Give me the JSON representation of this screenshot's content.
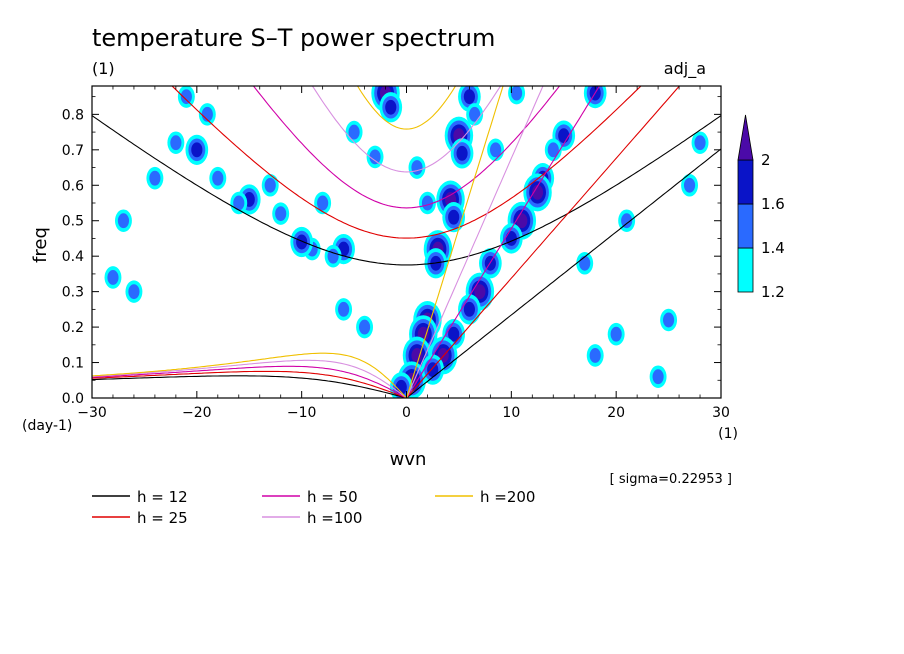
{
  "chart_data": {
    "type": "heatmap",
    "title": "temperature S–T power spectrum",
    "subtitle": "(1)",
    "right_label": "adj_a",
    "xlabel": "wvn",
    "ylabel": "freq",
    "x_unit": "(1)",
    "y_unit": "(day-1)",
    "xlim": [
      -30,
      30
    ],
    "ylim": [
      0,
      0.88
    ],
    "x_ticks": [
      "−30",
      "−20",
      "−10",
      "0",
      "10",
      "20",
      "30"
    ],
    "x_tick_values": [
      -30,
      -20,
      -10,
      0,
      10,
      20,
      30
    ],
    "y_ticks": [
      "0.0",
      "0.1",
      "0.2",
      "0.3",
      "0.4",
      "0.5",
      "0.6",
      "0.7",
      "0.8"
    ],
    "y_tick_values": [
      0,
      0.1,
      0.2,
      0.3,
      0.4,
      0.5,
      0.6,
      0.7,
      0.8
    ],
    "sigma_note": "[ sigma=0.22953 ]",
    "colorbar": {
      "levels": [
        "1.2",
        "1.4",
        "1.6",
        "2"
      ],
      "level_values": [
        1.2,
        1.4,
        1.6,
        2.0
      ],
      "colors": [
        "#00ffff",
        "#2a6aff",
        "#0a14c8",
        "#4b0aa8"
      ]
    },
    "series": [
      {
        "name": "h = 12",
        "h": 12,
        "color": "#000000"
      },
      {
        "name": "h = 25",
        "h": 25,
        "color": "#e00000"
      },
      {
        "name": "h = 50",
        "h": 50,
        "color": "#d000a8"
      },
      {
        "name": "h =100",
        "h": 100,
        "color": "#d890e0"
      },
      {
        "name": "h =200",
        "h": 200,
        "color": "#f0c000"
      }
    ],
    "blobs": [
      {
        "x": -2,
        "y": 0.86,
        "level": 4
      },
      {
        "x": -1.5,
        "y": 0.82,
        "level": 3
      },
      {
        "x": 5,
        "y": 0.74,
        "level": 4
      },
      {
        "x": 5.3,
        "y": 0.69,
        "level": 3
      },
      {
        "x": 4.2,
        "y": 0.56,
        "level": 4
      },
      {
        "x": 4.5,
        "y": 0.51,
        "level": 3
      },
      {
        "x": 3,
        "y": 0.42,
        "level": 4
      },
      {
        "x": 2.8,
        "y": 0.38,
        "level": 3
      },
      {
        "x": 2,
        "y": 0.22,
        "level": 4
      },
      {
        "x": 1.6,
        "y": 0.18,
        "level": 4
      },
      {
        "x": 1,
        "y": 0.12,
        "level": 4
      },
      {
        "x": 0.5,
        "y": 0.05,
        "level": 4
      },
      {
        "x": -0.5,
        "y": 0.03,
        "level": 3
      },
      {
        "x": 6,
        "y": 0.85,
        "level": 3
      },
      {
        "x": 6.5,
        "y": 0.8,
        "level": 2
      },
      {
        "x": 11,
        "y": 0.5,
        "level": 4
      },
      {
        "x": 10,
        "y": 0.45,
        "level": 3
      },
      {
        "x": 8,
        "y": 0.38,
        "level": 3
      },
      {
        "x": 7,
        "y": 0.3,
        "level": 4
      },
      {
        "x": 6,
        "y": 0.25,
        "level": 3
      },
      {
        "x": 4.5,
        "y": 0.18,
        "level": 3
      },
      {
        "x": 3.5,
        "y": 0.12,
        "level": 4
      },
      {
        "x": 2.5,
        "y": 0.08,
        "level": 3
      },
      {
        "x": 13,
        "y": 0.62,
        "level": 3
      },
      {
        "x": 12.5,
        "y": 0.58,
        "level": 4
      },
      {
        "x": 15,
        "y": 0.74,
        "level": 3
      },
      {
        "x": 14,
        "y": 0.7,
        "level": 2
      },
      {
        "x": 18,
        "y": 0.86,
        "level": 3
      },
      {
        "x": -6,
        "y": 0.42,
        "level": 3
      },
      {
        "x": -7,
        "y": 0.4,
        "level": 2
      },
      {
        "x": -9,
        "y": 0.42,
        "level": 2
      },
      {
        "x": -10,
        "y": 0.44,
        "level": 3
      },
      {
        "x": -15,
        "y": 0.56,
        "level": 3
      },
      {
        "x": -16,
        "y": 0.55,
        "level": 2
      },
      {
        "x": -18,
        "y": 0.62,
        "level": 2
      },
      {
        "x": -20,
        "y": 0.7,
        "level": 3
      },
      {
        "x": -22,
        "y": 0.72,
        "level": 2
      },
      {
        "x": -19,
        "y": 0.8,
        "level": 2
      },
      {
        "x": -21,
        "y": 0.85,
        "level": 2
      },
      {
        "x": -13,
        "y": 0.6,
        "level": 2
      },
      {
        "x": -12,
        "y": 0.52,
        "level": 2
      },
      {
        "x": -8,
        "y": 0.55,
        "level": 2
      },
      {
        "x": 8.5,
        "y": 0.7,
        "level": 2
      },
      {
        "x": 10.5,
        "y": 0.86,
        "level": 2
      },
      {
        "x": 2,
        "y": 0.55,
        "level": 2
      },
      {
        "x": 1,
        "y": 0.65,
        "level": 2
      },
      {
        "x": -4,
        "y": 0.2,
        "level": 2
      },
      {
        "x": -6,
        "y": 0.25,
        "level": 2
      },
      {
        "x": -26,
        "y": 0.3,
        "level": 2
      },
      {
        "x": -28,
        "y": 0.34,
        "level": 2
      },
      {
        "x": 20,
        "y": 0.18,
        "level": 2
      },
      {
        "x": 25,
        "y": 0.22,
        "level": 2
      },
      {
        "x": 24,
        "y": 0.06,
        "level": 2
      },
      {
        "x": 18,
        "y": 0.12,
        "level": 2
      },
      {
        "x": -24,
        "y": 0.62,
        "level": 2
      },
      {
        "x": -27,
        "y": 0.5,
        "level": 2
      },
      {
        "x": 28,
        "y": 0.72,
        "level": 2
      },
      {
        "x": 27,
        "y": 0.6,
        "level": 2
      },
      {
        "x": 21,
        "y": 0.5,
        "level": 2
      },
      {
        "x": 17,
        "y": 0.38,
        "level": 2
      },
      {
        "x": -3,
        "y": 0.68,
        "level": 2
      },
      {
        "x": -5,
        "y": 0.75,
        "level": 2
      }
    ]
  }
}
